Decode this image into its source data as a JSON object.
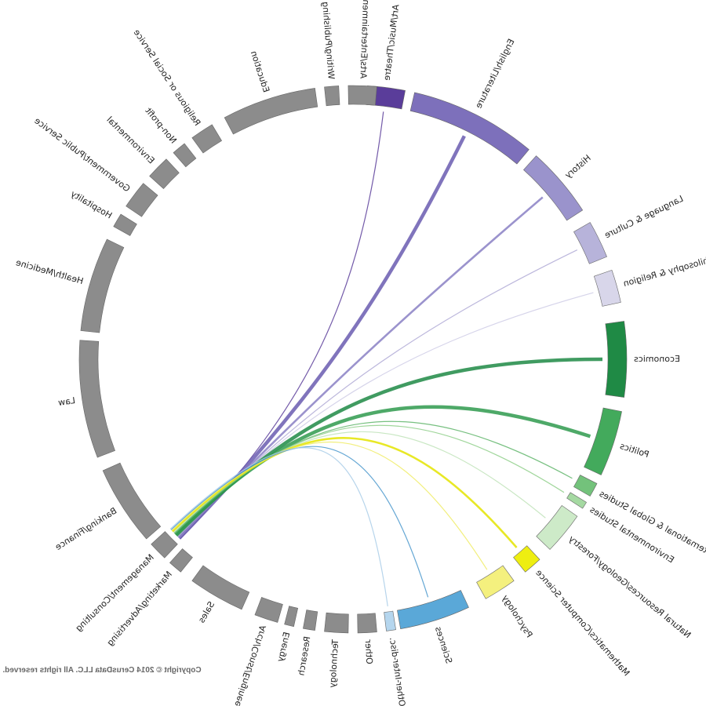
{
  "copyright": "Copyright © 2014 CerusData LLC.  All rights reserved.",
  "chord_diagram": {
    "source_segment": "Management/Consulting",
    "segments": [
      {
        "id": "art-music-theatre",
        "label": "Art/Music/Theatre",
        "color": "#5a3d9a",
        "group": "humanities"
      },
      {
        "id": "english-literature",
        "label": "English/Literature",
        "color": "#7d70bb",
        "group": "humanities"
      },
      {
        "id": "history",
        "label": "History",
        "color": "#9a93cc",
        "group": "humanities"
      },
      {
        "id": "language-culture",
        "label": "Language & Culture",
        "color": "#b7b3da",
        "group": "humanities"
      },
      {
        "id": "philosophy-religion",
        "label": "Philosophy & Religion",
        "color": "#d8d6ea",
        "group": "humanities"
      },
      {
        "id": "economics",
        "label": "Economics",
        "color": "#1f8a45",
        "group": "social"
      },
      {
        "id": "politics",
        "label": "Politics",
        "color": "#43aa5c",
        "group": "social"
      },
      {
        "id": "international-global-studies",
        "label": "International & Global Studies",
        "color": "#73c27b",
        "group": "social"
      },
      {
        "id": "environmental-studies",
        "label": "Environmental Studies",
        "color": "#a5d9a2",
        "group": "social"
      },
      {
        "id": "natural-resources",
        "label": "Natural Resources/Geology/Forestry",
        "color": "#cdeac8",
        "group": "social"
      },
      {
        "id": "math-cs",
        "label": "Mathematics/Computer Science",
        "color": "#eeee11",
        "group": "science"
      },
      {
        "id": "psychology",
        "label": "Psychology",
        "color": "#f4f07e",
        "group": "science"
      },
      {
        "id": "sciences",
        "label": "Sciences",
        "color": "#5aa8d8",
        "group": "science"
      },
      {
        "id": "other-inter-disciplinary",
        "label": "Other-Inter-disc.",
        "color": "#b5d6ee",
        "group": "science"
      },
      {
        "id": "other",
        "label": "Other",
        "color": "#8c8c8c",
        "group": "career"
      },
      {
        "id": "technology",
        "label": "Technology",
        "color": "#8c8c8c",
        "group": "career"
      },
      {
        "id": "research",
        "label": "Research",
        "color": "#8c8c8c",
        "group": "career"
      },
      {
        "id": "energy",
        "label": "Energy",
        "color": "#8c8c8c",
        "group": "career"
      },
      {
        "id": "arch-const-engineering",
        "label": "Arch/Const/Engineering",
        "color": "#8c8c8c",
        "group": "career"
      },
      {
        "id": "sales",
        "label": "Sales",
        "color": "#8c8c8c",
        "group": "career"
      },
      {
        "id": "marketing-advertising",
        "label": "Marketing/Advertising",
        "color": "#8c8c8c",
        "group": "career"
      },
      {
        "id": "management-consulting",
        "label": "Management/Consulting",
        "color": "#8c8c8c",
        "group": "career"
      },
      {
        "id": "banking-finance",
        "label": "Banking/Finance",
        "color": "#8c8c8c",
        "group": "career"
      },
      {
        "id": "law",
        "label": "Law",
        "color": "#8c8c8c",
        "group": "career"
      },
      {
        "id": "health-medicine",
        "label": "Health/Medicine",
        "color": "#8c8c8c",
        "group": "career"
      },
      {
        "id": "hospitality",
        "label": "Hospitality",
        "color": "#8c8c8c",
        "group": "career"
      },
      {
        "id": "government-public-service",
        "label": "Government/Public Service",
        "color": "#8c8c8c",
        "group": "career"
      },
      {
        "id": "environmental",
        "label": "Environmental",
        "color": "#8c8c8c",
        "group": "career"
      },
      {
        "id": "non-profit",
        "label": "Non-profit",
        "color": "#8c8c8c",
        "group": "career"
      },
      {
        "id": "religious-social-service",
        "label": "Religious or Social Service",
        "color": "#8c8c8c",
        "group": "career"
      },
      {
        "id": "education",
        "label": "Education",
        "color": "#8c8c8c",
        "group": "career"
      },
      {
        "id": "writing-publishing",
        "label": "Writing/Publishing",
        "color": "#8c8c8c",
        "group": "career"
      },
      {
        "id": "arts-entertainment",
        "label": "Arts/Entertainment",
        "color": "#8c8c8c",
        "group": "career"
      }
    ],
    "chords": [
      {
        "to": "art-music-theatre",
        "color": "#5a3d9a",
        "weight": "thin"
      },
      {
        "to": "english-literature",
        "color": "#6a5cb0",
        "weight": "thick"
      },
      {
        "to": "history",
        "color": "#8a80c4",
        "weight": "medium"
      },
      {
        "to": "language-culture",
        "color": "#b0aad6",
        "weight": "thin"
      },
      {
        "to": "philosophy-religion",
        "color": "#cfcce6",
        "weight": "thin"
      },
      {
        "to": "economics",
        "color": "#1f8a45",
        "weight": "thick"
      },
      {
        "to": "politics",
        "color": "#2f9a4e",
        "weight": "thick"
      },
      {
        "to": "international-global-studies",
        "color": "#5fb56a",
        "weight": "thin"
      },
      {
        "to": "environmental-studies",
        "color": "#8fcf8a",
        "weight": "thin"
      },
      {
        "to": "natural-resources",
        "color": "#bfe3b8",
        "weight": "thin"
      },
      {
        "to": "math-cs",
        "color": "#e4e400",
        "weight": "medium"
      },
      {
        "to": "psychology",
        "color": "#f0ec66",
        "weight": "thin"
      },
      {
        "to": "sciences",
        "color": "#4a98cc",
        "weight": "thin"
      },
      {
        "to": "other-inter-disciplinary",
        "color": "#a9cde8",
        "weight": "thin"
      }
    ]
  }
}
